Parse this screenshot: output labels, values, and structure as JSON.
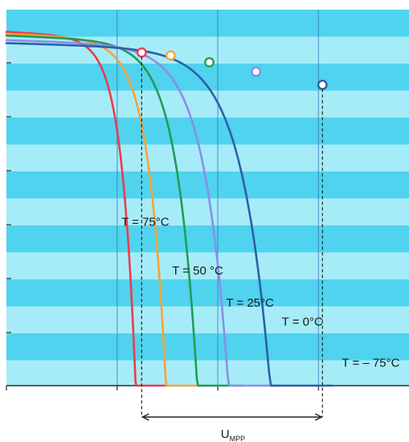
{
  "chart_data": {
    "type": "line",
    "title": "",
    "xlabel": "",
    "ylabel": "",
    "xlim": [
      0,
      10
    ],
    "ylim": [
      0,
      10
    ],
    "grid": true,
    "band_colors": [
      "#4fd3ee",
      "#a6ecf8"
    ],
    "series": [
      {
        "name": "T = 75°C",
        "color": "#ee3b4a",
        "i_sc": 9.16,
        "v_oc": 3.98,
        "v_knee": 2.95,
        "mpp": [
          3.36,
          8.86
        ],
        "label": "T = 75°C",
        "label_pos": [
          3.45,
          4.25
        ]
      },
      {
        "name": "T = 50 °C",
        "color": "#f6a23a",
        "i_sc": 9.11,
        "v_oc": 4.91,
        "v_knee": 3.95,
        "mpp": [
          4.08,
          8.78
        ],
        "label": "T = 50 °C",
        "label_pos": [
          4.75,
          2.95
        ]
      },
      {
        "name": "T = 25°C",
        "color": "#1f9c56",
        "i_sc": 9.06,
        "v_oc": 5.87,
        "v_knee": 4.95,
        "mpp": [
          5.04,
          8.6
        ],
        "label": "T = 25°C",
        "label_pos": [
          6.05,
          2.1
        ]
      },
      {
        "name": "T = 0°C",
        "color": "#8a8de8",
        "i_sc": 8.94,
        "v_oc": 6.82,
        "v_knee": 5.95,
        "mpp": [
          6.2,
          8.35
        ],
        "label": "T = 0°C",
        "label_pos": [
          7.35,
          1.6
        ]
      },
      {
        "name": "T = – 75°C",
        "color": "#2f5ea6",
        "i_sc": 8.86,
        "v_oc": 8.1,
        "v_knee": 7.55,
        "mpp": [
          7.85,
          8.0
        ],
        "label": "T = – 75°C",
        "label_pos": [
          9.05,
          0.5
        ]
      }
    ],
    "annotations": {
      "umpp_label": "U",
      "umpp_subscript": "MPP",
      "umpp_range": [
        3.36,
        7.85
      ]
    }
  }
}
